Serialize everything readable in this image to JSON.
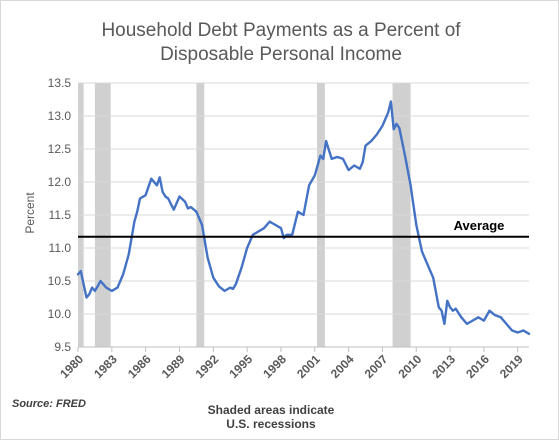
{
  "chart_data": {
    "type": "line",
    "title_line1": "Household Debt Payments as a Percent of",
    "title_line2": "Disposable Personal Income",
    "ylabel": "Percent",
    "ylim": [
      9.5,
      13.5
    ],
    "xlim": [
      1980,
      2020
    ],
    "y_ticks": [
      "9.5",
      "10.0",
      "10.5",
      "11.0",
      "11.5",
      "12.0",
      "12.5",
      "13.0",
      "13.5"
    ],
    "x_ticks": [
      "1980",
      "1983",
      "1986",
      "1989",
      "1992",
      "1995",
      "1998",
      "2001",
      "2004",
      "2007",
      "2010",
      "2013",
      "2016",
      "2019"
    ],
    "grid": "horizontal",
    "series_color": "#4472c4",
    "recession_color": "#d0d0d0",
    "average": {
      "value": 11.17,
      "label": "Average"
    },
    "recessions": [
      [
        1980.0,
        1980.5
      ],
      [
        1981.5,
        1982.9
      ],
      [
        1990.5,
        1991.2
      ],
      [
        2001.2,
        2001.9
      ],
      [
        2007.9,
        2009.5
      ]
    ],
    "series": [
      {
        "x": [
          1980.0,
          1980.25,
          1980.5,
          1980.75,
          1981.0,
          1981.25,
          1981.5,
          1981.75,
          1982.0,
          1982.5,
          1983.0,
          1983.5,
          1984.0,
          1984.5,
          1985.0,
          1985.25,
          1985.5,
          1986.0,
          1986.5,
          1987.0,
          1987.25,
          1987.5,
          1987.75,
          1988.0,
          1988.5,
          1989.0,
          1989.5,
          1989.75,
          1990.0,
          1990.5,
          1991.0,
          1991.5,
          1992.0,
          1992.5,
          1993.0,
          1993.5,
          1993.75,
          1994.0,
          1994.5,
          1995.0,
          1995.5,
          1996.0,
          1996.5,
          1997.0,
          1997.5,
          1998.0,
          1998.25,
          1998.5,
          1999.0,
          1999.5,
          2000.0,
          2000.5,
          2001.0,
          2001.5,
          2001.75,
          2002.0,
          2002.5,
          2003.0,
          2003.5,
          2004.0,
          2004.5,
          2005.0,
          2005.25,
          2005.5,
          2006.0,
          2006.5,
          2007.0,
          2007.5,
          2007.75,
          2008.0,
          2008.25,
          2008.5,
          2009.0,
          2009.5,
          2010.0,
          2010.5,
          2011.0,
          2011.5,
          2012.0,
          2012.25,
          2012.5,
          2012.75,
          2013.0,
          2013.25,
          2013.5,
          2014.0,
          2014.5,
          2015.0,
          2015.5,
          2016.0,
          2016.5,
          2017.0,
          2017.5,
          2018.0,
          2018.5,
          2019.0,
          2019.5,
          2020.0
        ],
        "values": [
          10.6,
          10.65,
          10.45,
          10.25,
          10.3,
          10.4,
          10.35,
          10.42,
          10.5,
          10.4,
          10.35,
          10.4,
          10.6,
          10.9,
          11.4,
          11.55,
          11.75,
          11.8,
          12.05,
          11.95,
          12.07,
          11.85,
          11.78,
          11.75,
          11.58,
          11.78,
          11.7,
          11.6,
          11.62,
          11.55,
          11.35,
          10.85,
          10.55,
          10.42,
          10.35,
          10.4,
          10.38,
          10.45,
          10.7,
          11.0,
          11.2,
          11.25,
          11.3,
          11.4,
          11.35,
          11.3,
          11.15,
          11.2,
          11.2,
          11.55,
          11.5,
          11.95,
          12.1,
          12.4,
          12.35,
          12.62,
          12.35,
          12.38,
          12.35,
          12.18,
          12.25,
          12.2,
          12.3,
          12.55,
          12.62,
          12.72,
          12.85,
          13.05,
          13.22,
          12.8,
          12.88,
          12.82,
          12.4,
          11.95,
          11.35,
          10.95,
          10.75,
          10.55,
          10.1,
          10.05,
          9.85,
          10.2,
          10.1,
          10.05,
          10.08,
          9.95,
          9.85,
          9.9,
          9.95,
          9.9,
          10.05,
          9.98,
          9.95,
          9.85,
          9.75,
          9.72,
          9.75,
          9.7
        ]
      }
    ]
  },
  "footer": {
    "source": "Source: FRED",
    "note_line1": "Shaded areas indicate",
    "note_line2": "U.S. recessions"
  }
}
